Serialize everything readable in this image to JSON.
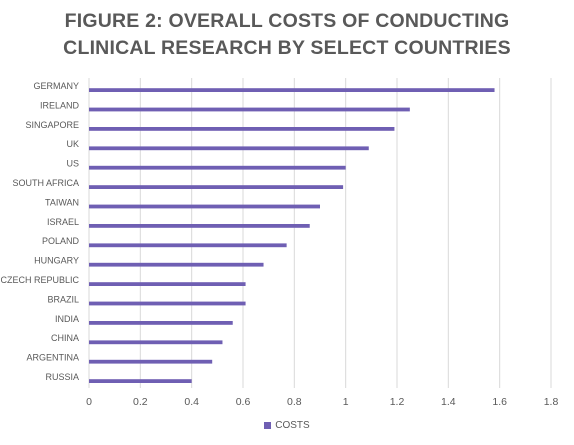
{
  "chart_data": {
    "type": "bar",
    "orientation": "horizontal",
    "title": "FIGURE 2: OVERALL COSTS OF CONDUCTING CLINICAL RESEARCH BY SELECT COUNTRIES",
    "title_lines": [
      "FIGURE 2: OVERALL COSTS OF CONDUCTING",
      "CLINICAL RESEARCH BY SELECT COUNTRIES"
    ],
    "categories": [
      "GERMANY",
      "IRELAND",
      "SINGAPORE",
      "UK",
      "US",
      "SOUTH AFRICA",
      "TAIWAN",
      "ISRAEL",
      "POLAND",
      "HUNGARY",
      "CZECH REPUBLIC",
      "BRAZIL",
      "INDIA",
      "CHINA",
      "ARGENTINA",
      "RUSSIA"
    ],
    "series": [
      {
        "name": "COSTS",
        "color": "#6f5fb3",
        "values": [
          1.58,
          1.25,
          1.19,
          1.09,
          1.0,
          0.99,
          0.9,
          0.86,
          0.77,
          0.68,
          0.61,
          0.61,
          0.56,
          0.52,
          0.48,
          0.4
        ]
      }
    ],
    "xlim": [
      0,
      1.8
    ],
    "xticks": [
      "0",
      "0.2",
      "0.4",
      "0.6",
      "0.8",
      "1",
      "1.2",
      "1.4",
      "1.6",
      "1.8"
    ],
    "grid": true,
    "legend_position": "bottom",
    "gridline_color": "#d9d9d9",
    "text_color": "#595959"
  }
}
